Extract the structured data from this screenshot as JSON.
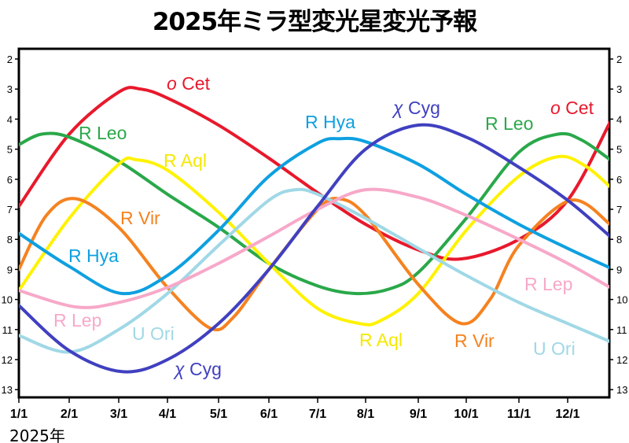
{
  "chart_data": {
    "type": "line",
    "title": "2025年ミラ型変光星変光予報",
    "year_label": "2025年",
    "x_ticks": [
      "1/1",
      "2/1",
      "3/1",
      "4/1",
      "5/1",
      "6/1",
      "7/1",
      "8/1",
      "9/1",
      "10/1",
      "11/1",
      "12/1"
    ],
    "y_ticks": [
      2,
      3,
      4,
      5,
      6,
      7,
      8,
      9,
      10,
      11,
      12,
      13
    ],
    "ylim": [
      2,
      13
    ],
    "y_inverted": true,
    "grid": false,
    "series": [
      {
        "name": "o Cet",
        "color": "#e8192c",
        "points": [
          [
            "1/1",
            6.9
          ],
          [
            "2/1",
            4.5
          ],
          [
            "3/1",
            3.1
          ],
          [
            "3/15",
            3.0
          ],
          [
            "4/1",
            3.3
          ],
          [
            "5/1",
            4.2
          ],
          [
            "6/1",
            5.3
          ],
          [
            "7/1",
            6.45
          ],
          [
            "8/1",
            7.5
          ],
          [
            "9/1",
            8.35
          ],
          [
            "9/28",
            8.65
          ],
          [
            "11/1",
            8.0
          ],
          [
            "12/1",
            6.7
          ],
          [
            "12/28",
            4.1
          ]
        ],
        "labels": [
          {
            "text": "o Cet"
          },
          {
            "text": "o Cet"
          }
        ]
      },
      {
        "name": "R Leo",
        "color": "#2aa84a",
        "points": [
          [
            "1/1",
            4.85
          ],
          [
            "1/15",
            4.5
          ],
          [
            "2/1",
            4.6
          ],
          [
            "3/1",
            5.4
          ],
          [
            "4/1",
            6.5
          ],
          [
            "5/1",
            7.6
          ],
          [
            "6/1",
            8.8
          ],
          [
            "7/1",
            9.55
          ],
          [
            "7/25",
            9.8
          ],
          [
            "8/15",
            9.65
          ],
          [
            "9/1",
            9.1
          ],
          [
            "10/1",
            7.3
          ],
          [
            "11/1",
            5.1
          ],
          [
            "11/25",
            4.5
          ],
          [
            "12/10",
            4.7
          ],
          [
            "12/28",
            5.35
          ]
        ],
        "labels": [
          {
            "text": "R Leo"
          },
          {
            "text": "R Leo"
          }
        ]
      },
      {
        "name": "R Aql",
        "color": "#fff200",
        "points": [
          [
            "1/1",
            9.7
          ],
          [
            "2/1",
            7.3
          ],
          [
            "3/1",
            5.5
          ],
          [
            "3/12",
            5.35
          ],
          [
            "4/1",
            5.7
          ],
          [
            "5/1",
            7.1
          ],
          [
            "6/1",
            8.8
          ],
          [
            "7/1",
            10.3
          ],
          [
            "7/28",
            10.8
          ],
          [
            "8/10",
            10.7
          ],
          [
            "9/1",
            9.8
          ],
          [
            "10/1",
            7.7
          ],
          [
            "11/1",
            5.9
          ],
          [
            "11/25",
            5.25
          ],
          [
            "12/12",
            5.55
          ],
          [
            "12/28",
            6.25
          ]
        ],
        "labels": [
          {
            "text": "R Aql"
          },
          {
            "text": "R Aql"
          }
        ]
      },
      {
        "name": "R Vir",
        "color": "#f58220",
        "points": [
          [
            "1/1",
            9.0
          ],
          [
            "1/18",
            7.2
          ],
          [
            "2/5",
            6.65
          ],
          [
            "3/1",
            7.6
          ],
          [
            "4/1",
            9.6
          ],
          [
            "4/26",
            10.95
          ],
          [
            "5/10",
            10.6
          ],
          [
            "6/1",
            9.0
          ],
          [
            "7/1",
            7.0
          ],
          [
            "7/15",
            6.65
          ],
          [
            "8/1",
            7.2
          ],
          [
            "9/1",
            9.5
          ],
          [
            "9/28",
            10.8
          ],
          [
            "10/15",
            10.0
          ],
          [
            "11/1",
            8.2
          ],
          [
            "12/3",
            6.7
          ],
          [
            "12/28",
            7.5
          ]
        ],
        "labels": [
          {
            "text": "R Vir"
          },
          {
            "text": "R Vir"
          }
        ]
      },
      {
        "name": "R Hya",
        "color": "#0ea0e0",
        "points": [
          [
            "1/1",
            7.8
          ],
          [
            "2/1",
            8.9
          ],
          [
            "3/3",
            9.8
          ],
          [
            "4/1",
            9.2
          ],
          [
            "5/1",
            7.7
          ],
          [
            "6/1",
            5.9
          ],
          [
            "7/1",
            4.8
          ],
          [
            "7/15",
            4.65
          ],
          [
            "8/1",
            4.75
          ],
          [
            "9/1",
            5.5
          ],
          [
            "10/1",
            6.5
          ],
          [
            "11/1",
            7.5
          ],
          [
            "12/1",
            8.3
          ],
          [
            "12/28",
            8.95
          ]
        ],
        "labels": [
          {
            "text": "R Hya"
          },
          {
            "text": "R Hya"
          }
        ]
      },
      {
        "name": "U Ori",
        "color": "#a0d8e6",
        "points": [
          [
            "1/1",
            11.2
          ],
          [
            "2/1",
            11.75
          ],
          [
            "3/1",
            11.0
          ],
          [
            "4/1",
            9.8
          ],
          [
            "5/1",
            8.2
          ],
          [
            "6/1",
            6.7
          ],
          [
            "6/17",
            6.35
          ],
          [
            "7/1",
            6.5
          ],
          [
            "8/1",
            7.3
          ],
          [
            "9/1",
            8.3
          ],
          [
            "10/1",
            9.2
          ],
          [
            "11/1",
            10.1
          ],
          [
            "12/1",
            10.8
          ],
          [
            "12/28",
            11.4
          ]
        ],
        "labels": [
          {
            "text": "U Ori"
          },
          {
            "text": "U Ori"
          }
        ]
      },
      {
        "name": "R Lep",
        "color": "#f7a8c8",
        "points": [
          [
            "1/1",
            9.7
          ],
          [
            "2/5",
            10.25
          ],
          [
            "3/1",
            10.1
          ],
          [
            "4/1",
            9.6
          ],
          [
            "5/1",
            8.8
          ],
          [
            "6/1",
            7.9
          ],
          [
            "7/1",
            7.0
          ],
          [
            "8/1",
            6.35
          ],
          [
            "9/1",
            6.6
          ],
          [
            "10/1",
            7.2
          ],
          [
            "11/1",
            8.0
          ],
          [
            "12/1",
            8.8
          ],
          [
            "12/28",
            9.6
          ]
        ],
        "labels": [
          {
            "text": "R Lep"
          },
          {
            "text": "R Lep"
          }
        ]
      },
      {
        "name": "χ Cyg",
        "color": "#4040c0",
        "points": [
          [
            "1/1",
            10.2
          ],
          [
            "2/1",
            11.7
          ],
          [
            "3/3",
            12.4
          ],
          [
            "4/1",
            12.0
          ],
          [
            "5/1",
            10.8
          ],
          [
            "6/1",
            9.0
          ],
          [
            "7/1",
            6.9
          ],
          [
            "8/1",
            5.0
          ],
          [
            "9/1",
            4.2
          ],
          [
            "10/1",
            4.6
          ],
          [
            "11/1",
            5.6
          ],
          [
            "12/1",
            6.7
          ],
          [
            "12/28",
            7.9
          ]
        ],
        "labels": [
          {
            "text": "χ Cyg"
          },
          {
            "text": "χ Cyg"
          }
        ]
      }
    ]
  }
}
